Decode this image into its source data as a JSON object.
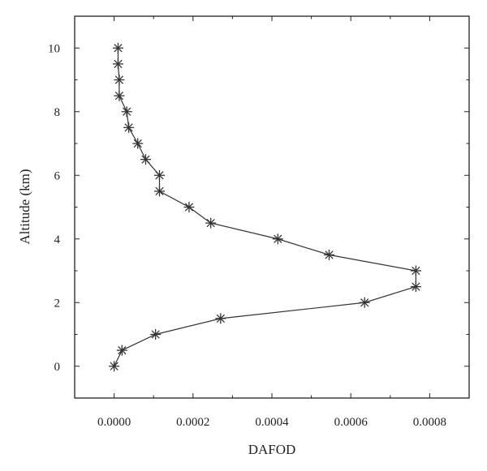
{
  "chart_data": {
    "type": "line",
    "xlabel": "DAFOD",
    "ylabel": "Altitude (km)",
    "xlim": [
      -0.0001,
      0.0009
    ],
    "ylim": [
      -1,
      11
    ],
    "x_ticks": [
      0.0,
      0.0002,
      0.0004,
      0.0006,
      0.0008
    ],
    "x_tick_labels": [
      "0.0000",
      "0.0002",
      "0.0004",
      "0.0006",
      "0.0008"
    ],
    "y_ticks": [
      0,
      2,
      4,
      6,
      8,
      10
    ],
    "y_tick_labels": [
      "0",
      "2",
      "4",
      "6",
      "8",
      "10"
    ],
    "grid": false,
    "marker": "asterisk",
    "line_color": "#333333",
    "series": [
      {
        "points": [
          {
            "x": 0.0,
            "y": 0.0
          },
          {
            "x": 2e-05,
            "y": 0.5
          },
          {
            "x": 0.000105,
            "y": 1.0
          },
          {
            "x": 0.00027,
            "y": 1.5
          },
          {
            "x": 0.000635,
            "y": 2.0
          },
          {
            "x": 0.000765,
            "y": 2.5
          },
          {
            "x": 0.000765,
            "y": 3.0
          },
          {
            "x": 0.000545,
            "y": 3.5
          },
          {
            "x": 0.000415,
            "y": 4.0
          },
          {
            "x": 0.000245,
            "y": 4.5
          },
          {
            "x": 0.00019,
            "y": 5.0
          },
          {
            "x": 0.000115,
            "y": 5.5
          },
          {
            "x": 0.000115,
            "y": 6.0
          },
          {
            "x": 8e-05,
            "y": 6.5
          },
          {
            "x": 6e-05,
            "y": 7.0
          },
          {
            "x": 3.7e-05,
            "y": 7.5
          },
          {
            "x": 3.2e-05,
            "y": 8.0
          },
          {
            "x": 1.3e-05,
            "y": 8.5
          },
          {
            "x": 1.3e-05,
            "y": 9.0
          },
          {
            "x": 1e-05,
            "y": 9.5
          },
          {
            "x": 1e-05,
            "y": 10.0
          }
        ]
      }
    ]
  }
}
